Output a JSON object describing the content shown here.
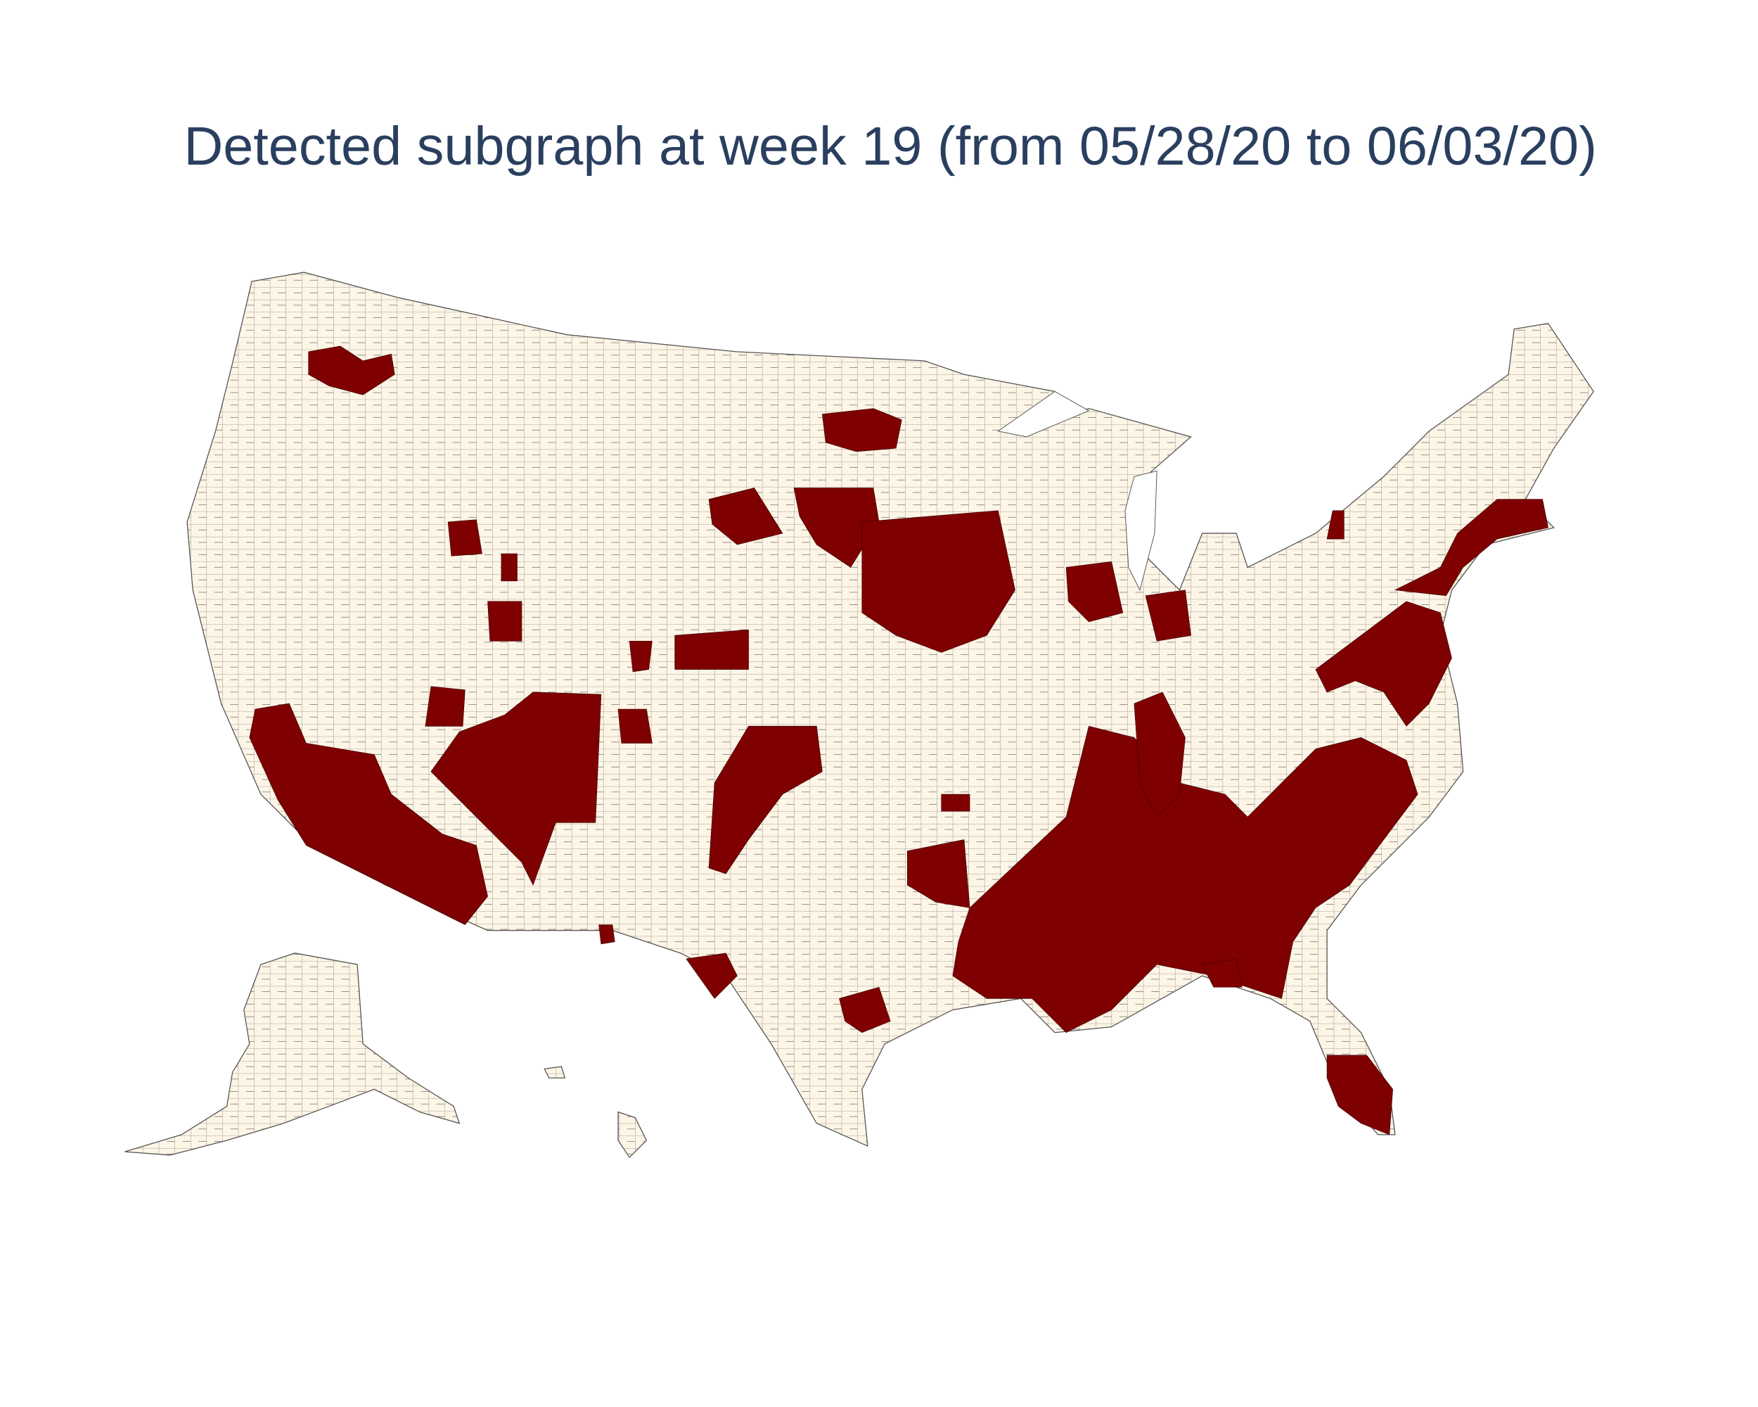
{
  "title": "Detected subgraph at week 19 (from 05/28/20 to 06/03/20)"
}
